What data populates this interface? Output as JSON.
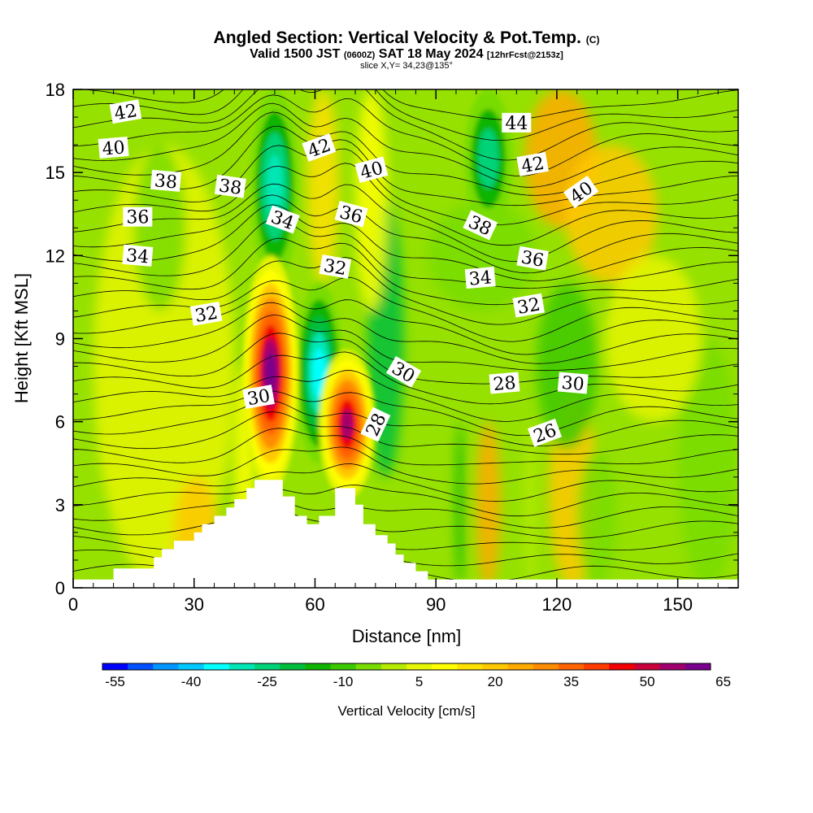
{
  "header": {
    "title": "Angled Section: Vertical Velocity & Pot.Temp.",
    "title_suffix": "(C)",
    "valid_a": "Valid 1500 JST",
    "valid_b": "(0600Z)",
    "valid_c": "SAT 18 May 2024",
    "valid_d": "[12hrFcst@2153z]",
    "slice": "slice X,Y= 34,23@135°"
  },
  "chart_data": {
    "type": "heatmap",
    "xlabel": "Distance [nm]",
    "ylabel": "Height [Kft MSL]",
    "xlim": [
      0,
      165
    ],
    "ylim": [
      0,
      18
    ],
    "x_ticks": [
      "0",
      "30",
      "60",
      "90",
      "120",
      "150"
    ],
    "y_ticks": [
      "0",
      "3",
      "6",
      "9",
      "12",
      "15",
      "18"
    ],
    "colorbar": {
      "label": "Vertical Velocity [cm/s]",
      "min": -55,
      "step": 5,
      "tick_labels": [
        "-55",
        "-40",
        "-25",
        "-10",
        "5",
        "20",
        "35",
        "50",
        "65"
      ],
      "colors": [
        "#0000ff",
        "#0050ff",
        "#0096ff",
        "#00c8ff",
        "#00ffff",
        "#00e6b4",
        "#00d278",
        "#00be3c",
        "#10b400",
        "#3cc800",
        "#78dc00",
        "#b4eb00",
        "#e6f500",
        "#ffff00",
        "#ffe100",
        "#ffc800",
        "#ffaa00",
        "#ff8c00",
        "#ff6400",
        "#ff3c00",
        "#f00000",
        "#c8003c",
        "#a0006e",
        "#78008c"
      ]
    },
    "terrain": [
      [
        0,
        0.3
      ],
      [
        10,
        0.3
      ],
      [
        10,
        0.7
      ],
      [
        20,
        0.7
      ],
      [
        20,
        1.1
      ],
      [
        22,
        1.1
      ],
      [
        22,
        1.4
      ],
      [
        25,
        1.4
      ],
      [
        25,
        1.7
      ],
      [
        30,
        1.7
      ],
      [
        30,
        2.0
      ],
      [
        32,
        2.0
      ],
      [
        32,
        2.3
      ],
      [
        35,
        2.3
      ],
      [
        35,
        2.6
      ],
      [
        38,
        2.6
      ],
      [
        38,
        2.9
      ],
      [
        40,
        2.9
      ],
      [
        40,
        3.2
      ],
      [
        43,
        3.2
      ],
      [
        43,
        3.6
      ],
      [
        45,
        3.6
      ],
      [
        45,
        3.9
      ],
      [
        52,
        3.9
      ],
      [
        52,
        3.3
      ],
      [
        55,
        3.3
      ],
      [
        55,
        2.6
      ],
      [
        58,
        2.6
      ],
      [
        58,
        2.3
      ],
      [
        61,
        2.3
      ],
      [
        61,
        2.6
      ],
      [
        65,
        2.6
      ],
      [
        65,
        3.6
      ],
      [
        70,
        3.6
      ],
      [
        70,
        3.0
      ],
      [
        72,
        3.0
      ],
      [
        72,
        2.3
      ],
      [
        75,
        2.3
      ],
      [
        75,
        1.9
      ],
      [
        78,
        1.9
      ],
      [
        78,
        1.6
      ],
      [
        80,
        1.6
      ],
      [
        80,
        1.2
      ],
      [
        82,
        1.2
      ],
      [
        82,
        0.9
      ],
      [
        85,
        0.9
      ],
      [
        85,
        0.6
      ],
      [
        88,
        0.6
      ],
      [
        88,
        0.3
      ],
      [
        165,
        0.3
      ]
    ],
    "updraft_cores": [
      {
        "x": 49,
        "z_bottom": 3.9,
        "z_top": 12.4,
        "peak": 65
      },
      {
        "x": 68,
        "z_bottom": 3.6,
        "z_top": 9.0,
        "peak": 55
      }
    ],
    "downdraft_cores": [
      {
        "x": 50,
        "z_bottom": 11,
        "z_top": 18,
        "peak": -30
      },
      {
        "x": 61,
        "z_bottom": 4.5,
        "z_top": 11,
        "peak": -35
      },
      {
        "x": 103,
        "z_bottom": 13,
        "z_top": 18,
        "peak": -22
      }
    ],
    "isentrope_values": [
      26,
      28,
      30,
      32,
      34,
      36,
      38,
      40,
      42,
      44
    ],
    "contour_labels": [
      {
        "text": "42",
        "x": 13,
        "y": 17.2,
        "rot": -10
      },
      {
        "text": "40",
        "x": 10,
        "y": 15.9,
        "rot": -5
      },
      {
        "text": "38",
        "x": 23,
        "y": 14.7,
        "rot": 5
      },
      {
        "text": "38",
        "x": 39,
        "y": 14.5,
        "rot": 8
      },
      {
        "text": "36",
        "x": 16,
        "y": 13.4,
        "rot": 0
      },
      {
        "text": "34",
        "x": 16,
        "y": 12.0,
        "rot": 5
      },
      {
        "text": "34",
        "x": 52,
        "y": 13.3,
        "rot": 20
      },
      {
        "text": "42",
        "x": 61,
        "y": 15.9,
        "rot": -20
      },
      {
        "text": "40",
        "x": 74,
        "y": 15.1,
        "rot": -15
      },
      {
        "text": "36",
        "x": 69,
        "y": 13.5,
        "rot": 15
      },
      {
        "text": "32",
        "x": 65,
        "y": 11.6,
        "rot": 10
      },
      {
        "text": "32",
        "x": 33,
        "y": 9.9,
        "rot": -10
      },
      {
        "text": "30",
        "x": 46,
        "y": 6.9,
        "rot": -10
      },
      {
        "text": "30",
        "x": 82,
        "y": 7.8,
        "rot": 30
      },
      {
        "text": "28",
        "x": 75,
        "y": 5.9,
        "rot": -65
      },
      {
        "text": "44",
        "x": 110,
        "y": 16.8,
        "rot": 0
      },
      {
        "text": "42",
        "x": 114,
        "y": 15.3,
        "rot": -10
      },
      {
        "text": "40",
        "x": 126,
        "y": 14.3,
        "rot": -35
      },
      {
        "text": "38",
        "x": 101,
        "y": 13.1,
        "rot": 25
      },
      {
        "text": "36",
        "x": 114,
        "y": 11.9,
        "rot": 10
      },
      {
        "text": "34",
        "x": 101,
        "y": 11.2,
        "rot": -5
      },
      {
        "text": "32",
        "x": 113,
        "y": 10.2,
        "rot": -10
      },
      {
        "text": "28",
        "x": 107,
        "y": 7.4,
        "rot": -5
      },
      {
        "text": "30",
        "x": 124,
        "y": 7.4,
        "rot": 5
      },
      {
        "text": "26",
        "x": 117,
        "y": 5.6,
        "rot": -20
      }
    ]
  }
}
